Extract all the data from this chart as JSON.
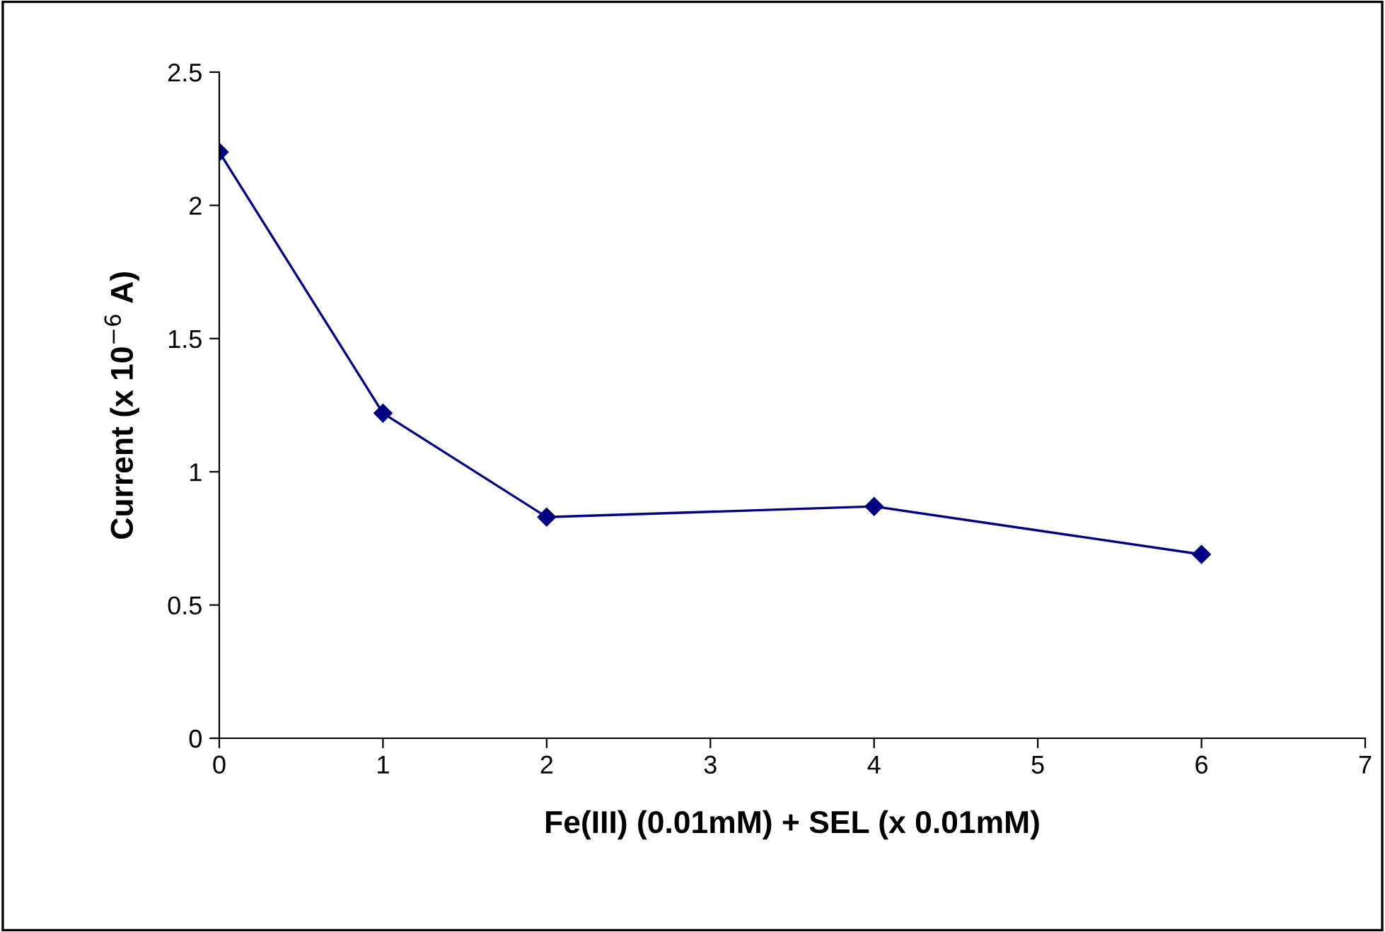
{
  "chart_data": {
    "type": "line",
    "xlabel": "Fe(III) (0.01mM) + SEL (x 0.01mM)",
    "ylabel": "Current (x 10$^{−6}$ A)",
    "x": [
      0,
      1,
      2,
      4,
      6
    ],
    "series": [
      {
        "color": "#000080",
        "values": [
          2.2,
          1.22,
          0.83,
          0.87,
          0.69
        ]
      }
    ],
    "xlim": [
      0,
      7
    ],
    "xticks": [
      0,
      1,
      2,
      3,
      4,
      5,
      6,
      7
    ],
    "ylim": [
      0,
      2.5
    ],
    "yticks": [
      0,
      0.5,
      1,
      1.5,
      2,
      2.5
    ],
    "grid": false,
    "legend": false,
    "marker": "diamond",
    "line_style": "solid"
  }
}
